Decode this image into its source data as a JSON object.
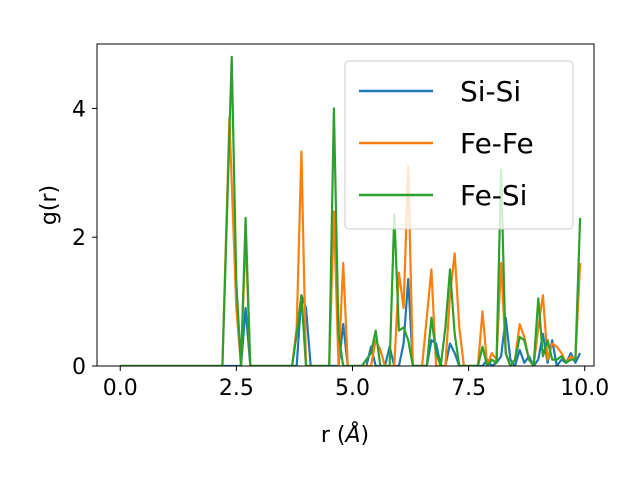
{
  "chart_data": {
    "type": "line",
    "xlabel": "r (",
    "xlabel_unit": "Å",
    "xlabel_close": ")",
    "ylabel": "g(r)",
    "xlim": [
      -0.5,
      10.2
    ],
    "ylim": [
      0,
      5.0
    ],
    "xticks": [
      0.0,
      2.5,
      5.0,
      7.5,
      10.0
    ],
    "xtick_labels": [
      "0.0",
      "2.5",
      "5.0",
      "7.5",
      "10.0"
    ],
    "yticks": [
      0,
      2,
      4
    ],
    "ytick_labels": [
      "0",
      "2",
      "4"
    ],
    "grid": false,
    "legend_placement": "upper-right",
    "series": [
      {
        "name": "Si-Si",
        "color": "#1f77b4",
        "points": [
          [
            0,
            0
          ],
          [
            2.6,
            0
          ],
          [
            2.7,
            0.9
          ],
          [
            2.8,
            0
          ],
          [
            3.8,
            0
          ],
          [
            3.9,
            1.1
          ],
          [
            4.0,
            0.9
          ],
          [
            4.1,
            0
          ],
          [
            4.7,
            0
          ],
          [
            4.8,
            0.65
          ],
          [
            4.9,
            0
          ],
          [
            5.3,
            0
          ],
          [
            5.4,
            0.3
          ],
          [
            5.5,
            0
          ],
          [
            5.6,
            0
          ],
          [
            5.7,
            0
          ],
          [
            5.8,
            0.3
          ],
          [
            5.9,
            0
          ],
          [
            6.0,
            0
          ],
          [
            6.1,
            0.35
          ],
          [
            6.2,
            1.35
          ],
          [
            6.3,
            0
          ],
          [
            6.6,
            0
          ],
          [
            6.7,
            0.4
          ],
          [
            6.8,
            0.35
          ],
          [
            6.9,
            0
          ],
          [
            7.0,
            0
          ],
          [
            7.1,
            0.35
          ],
          [
            7.2,
            0.2
          ],
          [
            7.3,
            0
          ],
          [
            7.8,
            0
          ],
          [
            7.9,
            0.1
          ],
          [
            8.0,
            0
          ],
          [
            8.1,
            0.05
          ],
          [
            8.2,
            0.15
          ],
          [
            8.3,
            0.75
          ],
          [
            8.4,
            0.1
          ],
          [
            8.5,
            0
          ],
          [
            8.6,
            0.25
          ],
          [
            8.7,
            0.05
          ],
          [
            8.8,
            0.15
          ],
          [
            8.9,
            0
          ],
          [
            9.0,
            0.1
          ],
          [
            9.1,
            0.5
          ],
          [
            9.2,
            0.05
          ],
          [
            9.3,
            0.4
          ],
          [
            9.4,
            0
          ],
          [
            9.5,
            0.1
          ],
          [
            9.6,
            0.05
          ],
          [
            9.7,
            0.2
          ],
          [
            9.8,
            0.05
          ],
          [
            9.9,
            0.2
          ]
        ]
      },
      {
        "name": "Fe-Fe",
        "color": "#ff7f0e",
        "points": [
          [
            0,
            0
          ],
          [
            2.2,
            0
          ],
          [
            2.35,
            3.85
          ],
          [
            2.5,
            0.9
          ],
          [
            2.6,
            0
          ],
          [
            2.7,
            2.05
          ],
          [
            2.8,
            0
          ],
          [
            3.7,
            0
          ],
          [
            3.8,
            0.6
          ],
          [
            3.9,
            3.33
          ],
          [
            4.0,
            0
          ],
          [
            4.5,
            0
          ],
          [
            4.6,
            2.4
          ],
          [
            4.7,
            0
          ],
          [
            4.8,
            1.6
          ],
          [
            4.9,
            0
          ],
          [
            5.4,
            0
          ],
          [
            5.5,
            0.4
          ],
          [
            5.6,
            0.25
          ],
          [
            5.7,
            0
          ],
          [
            5.9,
            0
          ],
          [
            6.0,
            1.45
          ],
          [
            6.1,
            0.9
          ],
          [
            6.2,
            3.1
          ],
          [
            6.3,
            0
          ],
          [
            6.5,
            0
          ],
          [
            6.7,
            1.5
          ],
          [
            6.8,
            0
          ],
          [
            7.0,
            0
          ],
          [
            7.1,
            1.1
          ],
          [
            7.2,
            1.75
          ],
          [
            7.3,
            0.6
          ],
          [
            7.4,
            0
          ],
          [
            7.7,
            0
          ],
          [
            7.8,
            0.85
          ],
          [
            7.9,
            0
          ],
          [
            8.0,
            0.2
          ],
          [
            8.1,
            0.1
          ],
          [
            8.2,
            1.6
          ],
          [
            8.3,
            0.2
          ],
          [
            8.4,
            0
          ],
          [
            8.5,
            0.1
          ],
          [
            8.6,
            0.65
          ],
          [
            8.7,
            0.45
          ],
          [
            8.8,
            0.1
          ],
          [
            8.9,
            0
          ],
          [
            9.0,
            0.6
          ],
          [
            9.1,
            1.1
          ],
          [
            9.2,
            0.1
          ],
          [
            9.3,
            0.35
          ],
          [
            9.4,
            0.3
          ],
          [
            9.5,
            0.2
          ],
          [
            9.6,
            0.05
          ],
          [
            9.7,
            0.15
          ],
          [
            9.8,
            0.1
          ],
          [
            9.9,
            1.6
          ]
        ]
      },
      {
        "name": "Fe-Si",
        "color": "#2ca02c",
        "points": [
          [
            0,
            0
          ],
          [
            2.2,
            0
          ],
          [
            2.3,
            2.4
          ],
          [
            2.4,
            4.8
          ],
          [
            2.5,
            1.3
          ],
          [
            2.6,
            0
          ],
          [
            2.7,
            2.3
          ],
          [
            2.8,
            0
          ],
          [
            3.7,
            0
          ],
          [
            3.8,
            0.5
          ],
          [
            3.9,
            1.1
          ],
          [
            4.0,
            0
          ],
          [
            4.5,
            0
          ],
          [
            4.6,
            4.0
          ],
          [
            4.7,
            0.5
          ],
          [
            4.8,
            0
          ],
          [
            5.2,
            0
          ],
          [
            5.4,
            0.2
          ],
          [
            5.5,
            0.55
          ],
          [
            5.6,
            0
          ],
          [
            5.8,
            0
          ],
          [
            5.9,
            2.35
          ],
          [
            6.0,
            0.55
          ],
          [
            6.1,
            0.6
          ],
          [
            6.2,
            0.4
          ],
          [
            6.3,
            0
          ],
          [
            6.6,
            0
          ],
          [
            6.7,
            0.75
          ],
          [
            6.8,
            0.2
          ],
          [
            6.9,
            0
          ],
          [
            7.0,
            0.6
          ],
          [
            7.1,
            1.5
          ],
          [
            7.2,
            0.5
          ],
          [
            7.3,
            0
          ],
          [
            7.7,
            0
          ],
          [
            7.8,
            0.3
          ],
          [
            7.9,
            0
          ],
          [
            8.0,
            0.1
          ],
          [
            8.1,
            0.05
          ],
          [
            8.2,
            3.05
          ],
          [
            8.3,
            0.2
          ],
          [
            8.4,
            0
          ],
          [
            8.5,
            0.1
          ],
          [
            8.6,
            0.45
          ],
          [
            8.7,
            0.4
          ],
          [
            8.8,
            0.1
          ],
          [
            8.9,
            0
          ],
          [
            9.0,
            1.05
          ],
          [
            9.1,
            0.15
          ],
          [
            9.2,
            0.4
          ],
          [
            9.3,
            0.1
          ],
          [
            9.4,
            0.1
          ],
          [
            9.5,
            0.15
          ],
          [
            9.6,
            0.05
          ],
          [
            9.7,
            0.1
          ],
          [
            9.8,
            0.1
          ],
          [
            9.9,
            2.3
          ]
        ]
      }
    ]
  }
}
